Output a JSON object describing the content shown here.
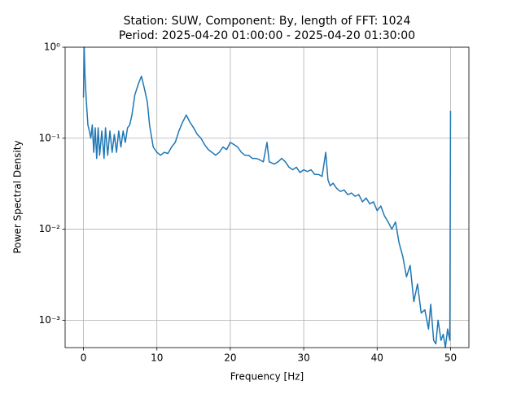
{
  "chart_data": {
    "type": "line",
    "title": "Station: SUW, Component: By, length of FFT: 1024",
    "subtitle": "Period: 2025-04-20 01:00:00 - 2025-04-20 01:30:00",
    "x_label": "Frequency [Hz]",
    "y_label": "Power Spectral Density",
    "color": "#1f77b4",
    "log_y": true,
    "grid": true,
    "x": [
      0,
      0.1,
      0.2,
      0.4,
      0.6,
      0.8,
      1.0,
      1.2,
      1.4,
      1.6,
      1.8,
      2.0,
      2.2,
      2.5,
      2.8,
      3.0,
      3.3,
      3.6,
      3.9,
      4.2,
      4.5,
      4.8,
      5.1,
      5.4,
      5.7,
      6.0,
      6.3,
      6.6,
      7.0,
      7.5,
      7.9,
      8.3,
      8.7,
      9.0,
      9.5,
      10,
      10.5,
      11,
      11.5,
      12,
      12.5,
      13,
      13.5,
      14,
      14.5,
      15,
      15.5,
      16,
      16.5,
      17,
      17.5,
      18,
      18.5,
      19,
      19.5,
      20,
      20.5,
      21,
      21.5,
      22,
      22.5,
      23,
      23.5,
      24,
      24.5,
      25,
      25.3,
      26,
      26.5,
      27,
      27.5,
      28,
      28.5,
      29,
      29.5,
      30,
      30.5,
      31,
      31.5,
      32,
      32.5,
      33,
      33.3,
      33.6,
      34,
      34.5,
      35,
      35.5,
      36,
      36.5,
      37,
      37.5,
      38,
      38.5,
      39,
      39.5,
      40,
      40.5,
      41,
      41.5,
      42,
      42.5,
      43,
      43.5,
      44,
      44.5,
      45,
      45.5,
      46,
      46.5,
      47,
      47.3,
      47.7,
      48,
      48.3,
      48.7,
      49,
      49.3,
      49.6,
      49.9,
      50
    ],
    "values": [
      0.28,
      1.0,
      0.5,
      0.25,
      0.14,
      0.12,
      0.1,
      0.14,
      0.07,
      0.13,
      0.06,
      0.13,
      0.065,
      0.12,
      0.06,
      0.13,
      0.065,
      0.12,
      0.07,
      0.11,
      0.07,
      0.12,
      0.08,
      0.12,
      0.09,
      0.13,
      0.14,
      0.18,
      0.3,
      0.4,
      0.48,
      0.35,
      0.25,
      0.14,
      0.08,
      0.07,
      0.065,
      0.07,
      0.068,
      0.08,
      0.09,
      0.12,
      0.15,
      0.18,
      0.15,
      0.13,
      0.11,
      0.1,
      0.085,
      0.075,
      0.07,
      0.065,
      0.07,
      0.08,
      0.075,
      0.09,
      0.085,
      0.08,
      0.07,
      0.065,
      0.065,
      0.06,
      0.06,
      0.058,
      0.055,
      0.09,
      0.055,
      0.052,
      0.055,
      0.06,
      0.055,
      0.048,
      0.045,
      0.048,
      0.042,
      0.045,
      0.043,
      0.045,
      0.04,
      0.04,
      0.038,
      0.07,
      0.035,
      0.03,
      0.032,
      0.028,
      0.026,
      0.027,
      0.024,
      0.025,
      0.023,
      0.024,
      0.02,
      0.022,
      0.019,
      0.02,
      0.016,
      0.018,
      0.014,
      0.012,
      0.01,
      0.012,
      0.007,
      0.005,
      0.003,
      0.004,
      0.0016,
      0.0025,
      0.0012,
      0.0013,
      0.0008,
      0.0015,
      0.0006,
      0.00055,
      0.001,
      0.0006,
      0.0007,
      0.0005,
      0.0008,
      0.0006,
      0.2
    ],
    "xlim": [
      -2.5,
      52.5
    ],
    "xticks": [
      0,
      10,
      20,
      30,
      40,
      50
    ],
    "ylim": [
      0.0005,
      1
    ],
    "yticks": [
      {
        "value": 0.001,
        "label": "10⁻³"
      },
      {
        "value": 0.01,
        "label": "10⁻²"
      },
      {
        "value": 0.1,
        "label": "10⁻¹"
      },
      {
        "value": 1,
        "label": "10⁰"
      }
    ]
  }
}
